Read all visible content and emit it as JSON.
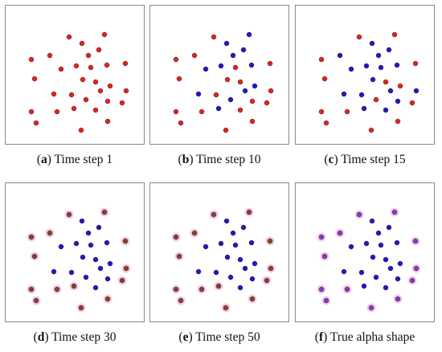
{
  "colors": {
    "red": "#e02323",
    "blue": "#1a1ac6",
    "brown": "#7a4a1e",
    "purple": "#7a3fc2",
    "halo": "#f7c8ec",
    "frame": "#8a8a8a"
  },
  "panels": [
    {
      "letter": "a",
      "text": "Time step 1",
      "halo": false,
      "points": [
        [
          "red",
          80,
          40
        ],
        [
          "red",
          124,
          37
        ],
        [
          "red",
          96,
          48
        ],
        [
          "red",
          117,
          56
        ],
        [
          "red",
          33,
          68
        ],
        [
          "red",
          56,
          63
        ],
        [
          "red",
          104,
          63
        ],
        [
          "red",
          150,
          73
        ],
        [
          "red",
          70,
          80
        ],
        [
          "red",
          89,
          76
        ],
        [
          "red",
          107,
          78
        ],
        [
          "red",
          127,
          75
        ],
        [
          "red",
          37,
          92
        ],
        [
          "red",
          97,
          93
        ],
        [
          "red",
          113,
          96
        ],
        [
          "red",
          131,
          101
        ],
        [
          "red",
          61,
          111
        ],
        [
          "red",
          83,
          112
        ],
        [
          "red",
          119,
          107
        ],
        [
          "red",
          151,
          107
        ],
        [
          "red",
          101,
          118
        ],
        [
          "red",
          128,
          120
        ],
        [
          "red",
          146,
          122
        ],
        [
          "red",
          33,
          133
        ],
        [
          "red",
          65,
          133
        ],
        [
          "red",
          86,
          129
        ],
        [
          "red",
          113,
          131
        ],
        [
          "red",
          39,
          147
        ],
        [
          "red",
          128,
          145
        ],
        [
          "red",
          95,
          156
        ]
      ]
    },
    {
      "letter": "b",
      "text": "Time step 10",
      "halo": false,
      "points": [
        [
          "red",
          80,
          40
        ],
        [
          "blue",
          124,
          37
        ],
        [
          "blue",
          96,
          48
        ],
        [
          "blue",
          117,
          56
        ],
        [
          "red",
          33,
          68
        ],
        [
          "red",
          56,
          63
        ],
        [
          "blue",
          104,
          63
        ],
        [
          "red",
          150,
          73
        ],
        [
          "blue",
          70,
          80
        ],
        [
          "blue",
          89,
          76
        ],
        [
          "red",
          107,
          78
        ],
        [
          "blue",
          127,
          75
        ],
        [
          "red",
          37,
          92
        ],
        [
          "red",
          97,
          93
        ],
        [
          "red",
          113,
          96
        ],
        [
          "blue",
          131,
          101
        ],
        [
          "blue",
          61,
          111
        ],
        [
          "red",
          83,
          112
        ],
        [
          "blue",
          119,
          107
        ],
        [
          "red",
          151,
          107
        ],
        [
          "blue",
          101,
          118
        ],
        [
          "red",
          128,
          120
        ],
        [
          "red",
          146,
          122
        ],
        [
          "red",
          33,
          133
        ],
        [
          "red",
          65,
          133
        ],
        [
          "blue",
          86,
          129
        ],
        [
          "red",
          113,
          131
        ],
        [
          "red",
          39,
          147
        ],
        [
          "red",
          128,
          145
        ],
        [
          "red",
          95,
          156
        ]
      ]
    },
    {
      "letter": "c",
      "text": "Time step 15",
      "halo": false,
      "points": [
        [
          "red",
          80,
          40
        ],
        [
          "red",
          124,
          37
        ],
        [
          "blue",
          96,
          48
        ],
        [
          "blue",
          117,
          56
        ],
        [
          "red",
          33,
          68
        ],
        [
          "blue",
          56,
          63
        ],
        [
          "blue",
          104,
          63
        ],
        [
          "red",
          150,
          73
        ],
        [
          "blue",
          70,
          80
        ],
        [
          "blue",
          89,
          76
        ],
        [
          "blue",
          107,
          78
        ],
        [
          "blue",
          127,
          75
        ],
        [
          "red",
          37,
          92
        ],
        [
          "blue",
          97,
          93
        ],
        [
          "red",
          113,
          96
        ],
        [
          "red",
          131,
          101
        ],
        [
          "blue",
          61,
          111
        ],
        [
          "blue",
          83,
          112
        ],
        [
          "blue",
          119,
          107
        ],
        [
          "blue",
          151,
          107
        ],
        [
          "red",
          101,
          118
        ],
        [
          "blue",
          128,
          120
        ],
        [
          "red",
          146,
          122
        ],
        [
          "red",
          33,
          133
        ],
        [
          "red",
          65,
          133
        ],
        [
          "blue",
          86,
          129
        ],
        [
          "blue",
          113,
          131
        ],
        [
          "red",
          39,
          147
        ],
        [
          "red",
          128,
          145
        ],
        [
          "red",
          95,
          156
        ]
      ]
    },
    {
      "letter": "d",
      "text": "Time step 30",
      "halo": true,
      "points": [
        [
          "brown",
          80,
          40
        ],
        [
          "brown",
          124,
          37
        ],
        [
          "blue",
          96,
          48
        ],
        [
          "blue",
          117,
          56
        ],
        [
          "brown",
          33,
          68
        ],
        [
          "brown",
          56,
          63
        ],
        [
          "blue",
          104,
          63
        ],
        [
          "brown",
          150,
          73
        ],
        [
          "blue",
          70,
          80
        ],
        [
          "blue",
          89,
          76
        ],
        [
          "blue",
          107,
          78
        ],
        [
          "blue",
          127,
          75
        ],
        [
          "brown",
          37,
          92
        ],
        [
          "blue",
          97,
          93
        ],
        [
          "blue",
          113,
          96
        ],
        [
          "blue",
          131,
          101
        ],
        [
          "blue",
          61,
          111
        ],
        [
          "blue",
          83,
          112
        ],
        [
          "blue",
          119,
          107
        ],
        [
          "brown",
          151,
          107
        ],
        [
          "blue",
          101,
          118
        ],
        [
          "blue",
          128,
          120
        ],
        [
          "brown",
          146,
          122
        ],
        [
          "brown",
          33,
          133
        ],
        [
          "brown",
          65,
          133
        ],
        [
          "brown",
          86,
          129
        ],
        [
          "blue",
          113,
          131
        ],
        [
          "brown",
          39,
          147
        ],
        [
          "brown",
          128,
          145
        ],
        [
          "brown",
          95,
          156
        ]
      ]
    },
    {
      "letter": "e",
      "text": "Time step 50",
      "halo": true,
      "points": [
        [
          "brown",
          80,
          40
        ],
        [
          "brown",
          124,
          37
        ],
        [
          "blue",
          96,
          48
        ],
        [
          "blue",
          117,
          56
        ],
        [
          "brown",
          33,
          68
        ],
        [
          "brown",
          56,
          63
        ],
        [
          "blue",
          104,
          63
        ],
        [
          "brown",
          150,
          73
        ],
        [
          "blue",
          70,
          80
        ],
        [
          "blue",
          89,
          76
        ],
        [
          "blue",
          107,
          78
        ],
        [
          "blue",
          127,
          75
        ],
        [
          "brown",
          37,
          92
        ],
        [
          "blue",
          97,
          93
        ],
        [
          "blue",
          113,
          96
        ],
        [
          "blue",
          131,
          101
        ],
        [
          "blue",
          61,
          111
        ],
        [
          "blue",
          83,
          112
        ],
        [
          "blue",
          119,
          107
        ],
        [
          "brown",
          151,
          107
        ],
        [
          "blue",
          101,
          118
        ],
        [
          "blue",
          128,
          120
        ],
        [
          "brown",
          146,
          122
        ],
        [
          "brown",
          33,
          133
        ],
        [
          "brown",
          65,
          133
        ],
        [
          "brown",
          86,
          129
        ],
        [
          "blue",
          113,
          131
        ],
        [
          "brown",
          39,
          147
        ],
        [
          "brown",
          128,
          145
        ],
        [
          "brown",
          95,
          156
        ]
      ]
    },
    {
      "letter": "f",
      "text": "True alpha shape",
      "halo": true,
      "points": [
        [
          "purple",
          80,
          40
        ],
        [
          "purple",
          124,
          37
        ],
        [
          "blue",
          96,
          48
        ],
        [
          "blue",
          117,
          56
        ],
        [
          "purple",
          33,
          68
        ],
        [
          "purple",
          56,
          63
        ],
        [
          "blue",
          104,
          63
        ],
        [
          "purple",
          150,
          73
        ],
        [
          "blue",
          70,
          80
        ],
        [
          "blue",
          89,
          76
        ],
        [
          "blue",
          107,
          78
        ],
        [
          "blue",
          127,
          75
        ],
        [
          "purple",
          37,
          92
        ],
        [
          "blue",
          97,
          93
        ],
        [
          "blue",
          113,
          96
        ],
        [
          "blue",
          131,
          101
        ],
        [
          "blue",
          61,
          111
        ],
        [
          "blue",
          83,
          112
        ],
        [
          "blue",
          119,
          107
        ],
        [
          "purple",
          151,
          107
        ],
        [
          "blue",
          101,
          118
        ],
        [
          "blue",
          128,
          120
        ],
        [
          "purple",
          146,
          122
        ],
        [
          "purple",
          33,
          133
        ],
        [
          "purple",
          65,
          133
        ],
        [
          "blue",
          86,
          129
        ],
        [
          "blue",
          113,
          131
        ],
        [
          "purple",
          39,
          147
        ],
        [
          "purple",
          128,
          145
        ],
        [
          "purple",
          95,
          156
        ]
      ]
    }
  ]
}
